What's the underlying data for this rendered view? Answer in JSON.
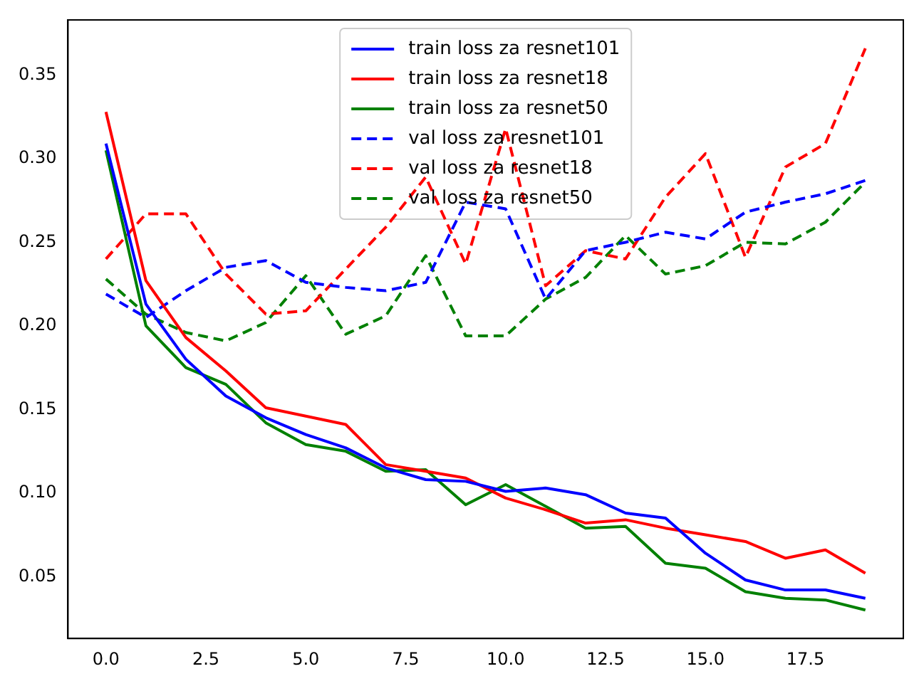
{
  "chart_data": {
    "type": "line",
    "x": [
      0,
      1,
      2,
      3,
      4,
      5,
      6,
      7,
      8,
      9,
      10,
      11,
      12,
      13,
      14,
      15,
      16,
      17,
      18,
      19
    ],
    "series": [
      {
        "name": "train loss za resnet101",
        "color": "#0000ff",
        "line_style": "solid",
        "values": [
          0.309,
          0.213,
          0.18,
          0.158,
          0.145,
          0.135,
          0.127,
          0.115,
          0.108,
          0.107,
          0.101,
          0.103,
          0.099,
          0.088,
          0.085,
          0.064,
          0.048,
          0.042,
          0.042,
          0.037
        ]
      },
      {
        "name": "train loss za resnet18",
        "color": "#ff0000",
        "line_style": "solid",
        "values": [
          0.328,
          0.227,
          0.193,
          0.173,
          0.151,
          0.146,
          0.141,
          0.117,
          0.113,
          0.109,
          0.097,
          0.09,
          0.082,
          0.084,
          0.079,
          0.075,
          0.071,
          0.061,
          0.066,
          0.052
        ]
      },
      {
        "name": "train loss za resnet50",
        "color": "#008000",
        "line_style": "solid",
        "values": [
          0.305,
          0.2,
          0.175,
          0.165,
          0.142,
          0.129,
          0.125,
          0.113,
          0.114,
          0.093,
          0.105,
          0.092,
          0.079,
          0.08,
          0.058,
          0.055,
          0.041,
          0.037,
          0.036,
          0.03
        ]
      },
      {
        "name": "val loss za resnet101",
        "color": "#0000ff",
        "line_style": "dashed",
        "values": [
          0.219,
          0.205,
          0.221,
          0.235,
          0.239,
          0.226,
          0.223,
          0.221,
          0.226,
          0.274,
          0.27,
          0.216,
          0.245,
          0.25,
          0.256,
          0.252,
          0.268,
          0.274,
          0.279,
          0.287
        ]
      },
      {
        "name": "val loss za resnet18",
        "color": "#ff0000",
        "line_style": "dashed",
        "values": [
          0.24,
          0.267,
          0.267,
          0.231,
          0.207,
          0.209,
          0.234,
          0.259,
          0.289,
          0.237,
          0.318,
          0.224,
          0.245,
          0.24,
          0.277,
          0.303,
          0.241,
          0.295,
          0.309,
          0.366
        ]
      },
      {
        "name": "val loss za resnet50",
        "color": "#008000",
        "line_style": "dashed",
        "values": [
          0.228,
          0.207,
          0.196,
          0.191,
          0.202,
          0.23,
          0.195,
          0.206,
          0.242,
          0.194,
          0.194,
          0.216,
          0.229,
          0.254,
          0.231,
          0.236,
          0.25,
          0.249,
          0.262,
          0.286
        ]
      }
    ],
    "xlim": [
      -0.95,
      19.95
    ],
    "xticks": [
      {
        "value": 0,
        "label": "0.0"
      },
      {
        "value": 2.5,
        "label": "2.5"
      },
      {
        "value": 5,
        "label": "5.0"
      },
      {
        "value": 7.5,
        "label": "7.5"
      },
      {
        "value": 10,
        "label": "10.0"
      },
      {
        "value": 12.5,
        "label": "12.5"
      },
      {
        "value": 15,
        "label": "15.0"
      },
      {
        "value": 17.5,
        "label": "17.5"
      }
    ],
    "ylim": [
      0.013,
      0.383
    ],
    "yticks": [
      {
        "value": 0.05,
        "label": "0.05"
      },
      {
        "value": 0.1,
        "label": "0.10"
      },
      {
        "value": 0.15,
        "label": "0.15"
      },
      {
        "value": 0.2,
        "label": "0.20"
      },
      {
        "value": 0.25,
        "label": "0.25"
      },
      {
        "value": 0.3,
        "label": "0.30"
      },
      {
        "value": 0.35,
        "label": "0.35"
      }
    ],
    "grid": false,
    "legend": "top",
    "marker": "none"
  }
}
